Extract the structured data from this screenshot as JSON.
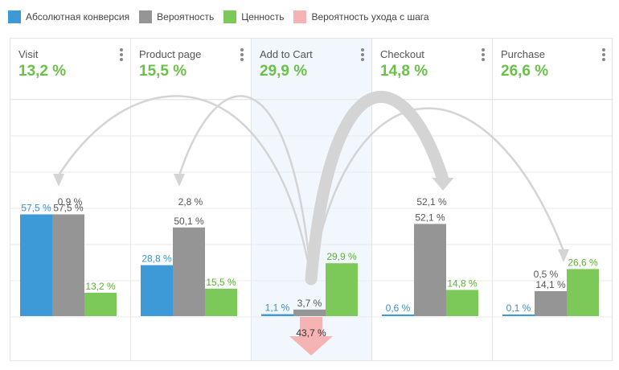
{
  "legend": [
    {
      "label": "Абсолютная конверсия",
      "color": "#3d9ad6"
    },
    {
      "label": "Вероятность",
      "color": "#959595"
    },
    {
      "label": "Ценность",
      "color": "#7cc95a"
    },
    {
      "label": "Вероятность ухода с шага",
      "color": "#f5b3b3"
    }
  ],
  "stages": [
    {
      "name": "Visit",
      "value": "13,2 %"
    },
    {
      "name": "Product page",
      "value": "15,5 %"
    },
    {
      "name": "Add to Cart",
      "value": "29,9 %"
    },
    {
      "name": "Checkout",
      "value": "14,8 %"
    },
    {
      "name": "Purchase",
      "value": "26,6 %"
    }
  ],
  "chart_data": {
    "type": "bar",
    "categories": [
      "Visit",
      "Product page",
      "Add to Cart",
      "Checkout",
      "Purchase"
    ],
    "ylim": [
      0,
      100
    ],
    "series": [
      {
        "name": "Абсолютная конверсия",
        "color": "#3d9ad6",
        "label_color": "#3d8fc9",
        "values": [
          57.5,
          28.8,
          1.1,
          0.6,
          0.1
        ],
        "labels": [
          "57,5 %",
          "28,8 %",
          "1,1 %",
          "0,6 %",
          "0,1 %"
        ]
      },
      {
        "name": "Вероятность",
        "color": "#959595",
        "label_color": "#555555",
        "values": [
          57.5,
          50.1,
          3.7,
          52.1,
          14.1
        ],
        "labels": [
          "57,5 %",
          "50,1 %",
          "3,7 %",
          "52,1 %",
          "14,1 %"
        ]
      },
      {
        "name": "Ценность",
        "color": "#7cc95a",
        "label_color": "#5fae3c",
        "values": [
          13.2,
          15.5,
          29.9,
          14.8,
          26.6
        ],
        "labels": [
          "13,2 %",
          "15,5 %",
          "29,9 %",
          "14,8 %",
          "26,6 %"
        ]
      }
    ],
    "transitions": [
      {
        "from": "Add to Cart",
        "to": "Visit",
        "value": 0.9,
        "label": "0,9 %"
      },
      {
        "from": "Add to Cart",
        "to": "Product page",
        "value": 2.8,
        "label": "2,8 %"
      },
      {
        "from": "Add to Cart",
        "to": "Checkout",
        "value": 52.1,
        "label": "52,1 %"
      },
      {
        "from": "Add to Cart",
        "to": "Purchase",
        "value": 0.5,
        "label": "0,5 %"
      }
    ],
    "dropoff": {
      "stage": "Add to Cart",
      "value": 43.7,
      "label": "43,7 %"
    }
  }
}
